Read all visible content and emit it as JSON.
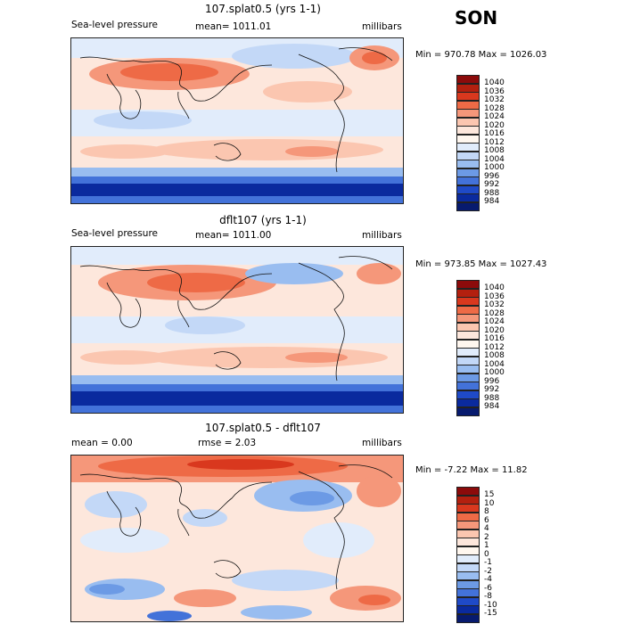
{
  "season": "SON",
  "panels": [
    {
      "id": "model",
      "title": "107.splat0.5 (yrs 1-1)",
      "left_label": "Sea-level pressure",
      "center_label": "mean= 1011.01",
      "right_label": "millibars",
      "minmax": "Min = 970.78 Max = 1026.03",
      "colorbar_labels": [
        "1040",
        "1036",
        "1032",
        "1028",
        "1024",
        "1020",
        "1016",
        "1012",
        "1008",
        "1004",
        "1000",
        "996",
        "992",
        "988",
        "984"
      ],
      "colorbar_colors": [
        "#8c0b0b",
        "#b3200f",
        "#d9381e",
        "#ee6a46",
        "#f5977a",
        "#fbc6b0",
        "#fde7dc",
        "#fff7ef",
        "#e1ecfb",
        "#c3d8f7",
        "#99bdf0",
        "#6c9ae5",
        "#4372d9",
        "#1f4ac7",
        "#0a2a9e",
        "#071a6e"
      ]
    },
    {
      "id": "control",
      "title": "dflt107 (yrs 1-1)",
      "left_label": "Sea-level pressure",
      "center_label": "mean= 1011.00",
      "right_label": "millibars",
      "minmax": "Min = 973.85 Max = 1027.43",
      "colorbar_labels": [
        "1040",
        "1036",
        "1032",
        "1028",
        "1024",
        "1020",
        "1016",
        "1012",
        "1008",
        "1004",
        "1000",
        "996",
        "992",
        "988",
        "984"
      ],
      "colorbar_colors": [
        "#8c0b0b",
        "#b3200f",
        "#d9381e",
        "#ee6a46",
        "#f5977a",
        "#fbc6b0",
        "#fde7dc",
        "#fff7ef",
        "#e1ecfb",
        "#c3d8f7",
        "#99bdf0",
        "#6c9ae5",
        "#4372d9",
        "#1f4ac7",
        "#0a2a9e",
        "#071a6e"
      ]
    },
    {
      "id": "difference",
      "title": "107.splat0.5 - dflt107",
      "left_label": "mean =    0.00",
      "center_label": "rmse =    2.03",
      "right_label": "millibars",
      "minmax": "Min =  -7.22 Max =  11.82",
      "colorbar_labels": [
        "15",
        "10",
        "8",
        "6",
        "4",
        "2",
        "1",
        "0",
        "-1",
        "-2",
        "-4",
        "-6",
        "-8",
        "-10",
        "-15"
      ],
      "colorbar_colors": [
        "#8c0b0b",
        "#b3200f",
        "#d9381e",
        "#ee6a46",
        "#f5977a",
        "#fbc6b0",
        "#fde7dc",
        "#fff7ef",
        "#e1ecfb",
        "#c3d8f7",
        "#99bdf0",
        "#6c9ae5",
        "#4372d9",
        "#1f4ac7",
        "#0a2a9e",
        "#071a6e"
      ]
    }
  ],
  "chart_data": [
    {
      "type": "heatmap",
      "title": "107.splat0.5 (yrs 1-1)",
      "variable": "Sea-level pressure",
      "units": "millibars",
      "mean": 1011.01,
      "min": 970.78,
      "max": 1026.03,
      "contour_levels": [
        984,
        988,
        992,
        996,
        1000,
        1004,
        1008,
        1012,
        1016,
        1020,
        1024,
        1028,
        1032,
        1036,
        1040
      ]
    },
    {
      "type": "heatmap",
      "title": "dflt107 (yrs 1-1)",
      "variable": "Sea-level pressure",
      "units": "millibars",
      "mean": 1011.0,
      "min": 973.85,
      "max": 1027.43,
      "contour_levels": [
        984,
        988,
        992,
        996,
        1000,
        1004,
        1008,
        1012,
        1016,
        1020,
        1024,
        1028,
        1032,
        1036,
        1040
      ]
    },
    {
      "type": "heatmap",
      "title": "107.splat0.5 - dflt107",
      "units": "millibars",
      "mean": 0.0,
      "rmse": 2.03,
      "min": -7.22,
      "max": 11.82,
      "contour_levels": [
        -15,
        -10,
        -8,
        -6,
        -4,
        -2,
        -1,
        0,
        1,
        2,
        4,
        6,
        8,
        10,
        15
      ]
    }
  ]
}
